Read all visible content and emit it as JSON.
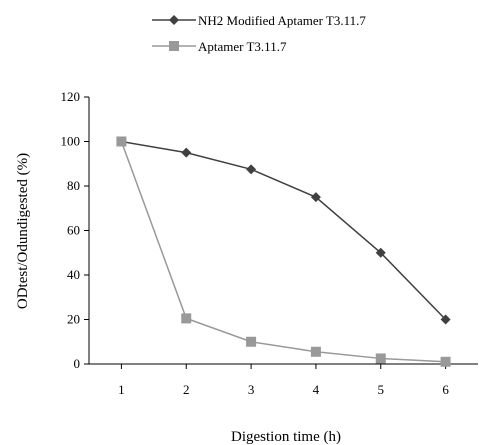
{
  "chart_data": {
    "type": "line",
    "xlabel": "Digestion time (h)",
    "ylabel": "ODtest/Odundigested (%)",
    "x": [
      1,
      2,
      3,
      4,
      5,
      6
    ],
    "ylim": [
      0,
      120
    ],
    "yticks": [
      0,
      20,
      40,
      60,
      80,
      100,
      120
    ],
    "grid": false,
    "legend_position": "top",
    "series": [
      {
        "name": "NH2 Modified Aptamer T3.11.7",
        "marker": "diamond",
        "color": "#404040",
        "values": [
          100,
          95,
          87.5,
          75,
          50,
          20
        ]
      },
      {
        "name": "Aptamer T3.11.7",
        "marker": "square",
        "color": "#999999",
        "values": [
          100,
          20.5,
          10,
          5.5,
          2.5,
          1
        ]
      }
    ]
  }
}
